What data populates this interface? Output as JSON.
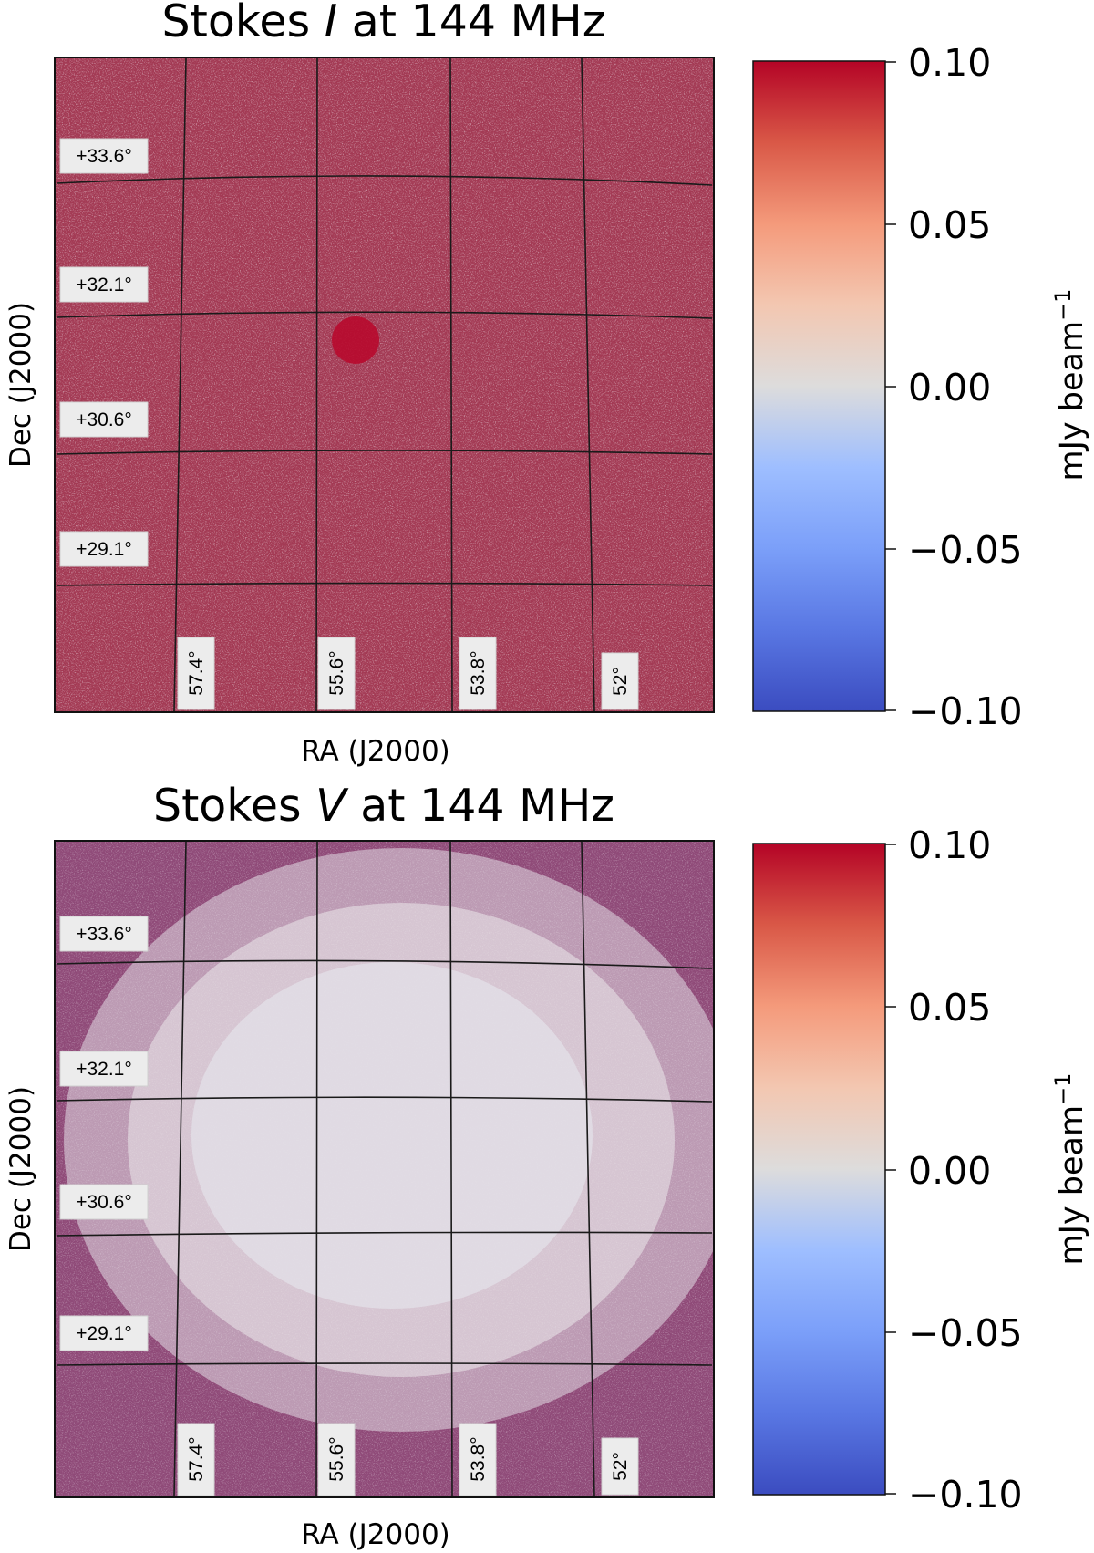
{
  "chart_data": [
    {
      "type": "heatmap",
      "title_prefix": "Stokes ",
      "title_param": "I",
      "title_suffix": " at 144 MHz",
      "xlabel": "RA (J2000)",
      "ylabel": "Dec (J2000)",
      "ra_ticks": [
        "57.4°",
        "55.6°",
        "53.8°",
        "52°"
      ],
      "dec_ticks": [
        "+33.6°",
        "+32.1°",
        "+30.6°",
        "+29.1°"
      ],
      "colorbar": {
        "colormap": "coolwarm",
        "vmin": -0.1,
        "vmax": 0.1,
        "ticks": [
          "0.10",
          "0.05",
          "0.00",
          "−0.05",
          "−0.10"
        ],
        "label": "mJy beam",
        "label_exponent": "−1"
      },
      "noise_level": "high, uniform across field",
      "features": [
        "compact positive source near centre"
      ]
    },
    {
      "type": "heatmap",
      "title_prefix": "Stokes ",
      "title_param": "V",
      "title_suffix": " at 144 MHz",
      "xlabel": "RA (J2000)",
      "ylabel": "Dec (J2000)",
      "ra_ticks": [
        "57.4°",
        "55.6°",
        "53.8°",
        "52°"
      ],
      "dec_ticks": [
        "+33.6°",
        "+32.1°",
        "+30.6°",
        "+29.1°"
      ],
      "colorbar": {
        "colormap": "coolwarm",
        "vmin": -0.1,
        "vmax": 0.1,
        "ticks": [
          "0.10",
          "0.05",
          "0.00",
          "−0.05",
          "−0.10"
        ],
        "label": "mJy beam",
        "label_exponent": "−1"
      },
      "noise_level": "low at centre, increasing toward edges",
      "features": []
    }
  ],
  "colors": {
    "cmap_low": "#3b4cc0",
    "cmap_mid": "#dddddd",
    "cmap_high": "#b40426"
  }
}
